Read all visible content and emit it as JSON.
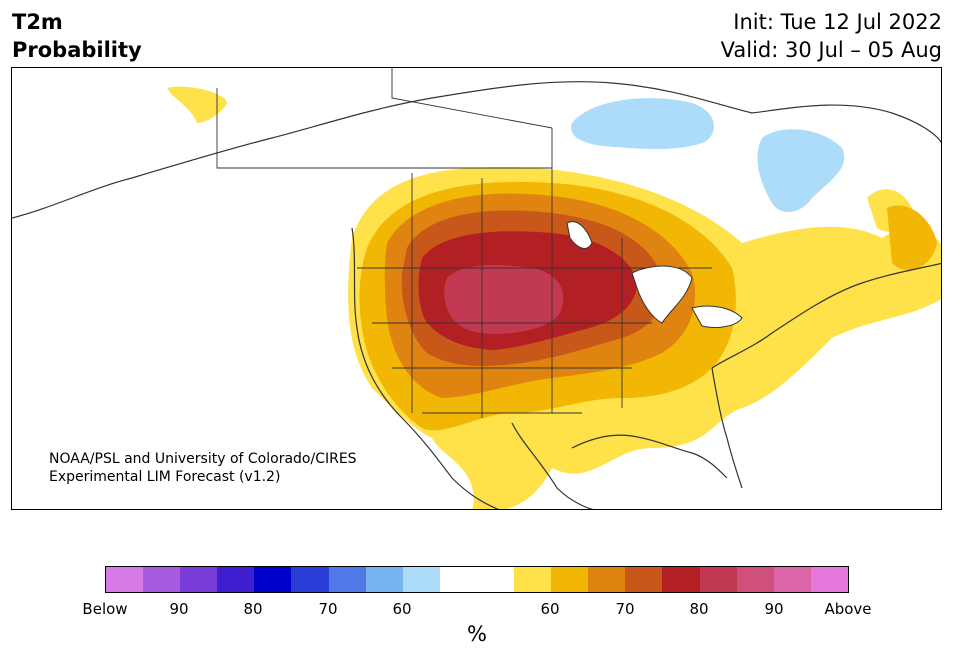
{
  "title": {
    "variable": "T2m",
    "product": "Probability",
    "init": "Init: Tue 12 Jul 2022",
    "valid": "Valid: 30 Jul – 05 Aug"
  },
  "credit": {
    "line1": "NOAA/PSL and University of Colorado/CIRES",
    "line2": "Experimental LIM Forecast (v1.2)"
  },
  "map": {
    "region": "North America",
    "probability_colors": {
      "above_60": "#ffe14a",
      "above_65": "#f2b705",
      "above_70": "#df8410",
      "above_75": "#c8581a",
      "above_80": "#b32024",
      "above_85": "#c23a52",
      "below_60": "#acdcfa"
    }
  },
  "colorbar": {
    "colors": [
      "#d87ae8",
      "#a85ae0",
      "#7a3cd8",
      "#3e1ed0",
      "#0000cc",
      "#2a3cd8",
      "#5078e6",
      "#78b4f0",
      "#acdcfa",
      "#ffffff",
      "#ffffff",
      "#ffe14a",
      "#f2b705",
      "#df8410",
      "#c8581a",
      "#b32024",
      "#c23a52",
      "#d0507c",
      "#dc64a8",
      "#e678dc"
    ],
    "tick_labels": [
      "Below",
      "90",
      "80",
      "70",
      "60",
      "60",
      "70",
      "80",
      "90",
      "Above"
    ],
    "unit": "%"
  }
}
